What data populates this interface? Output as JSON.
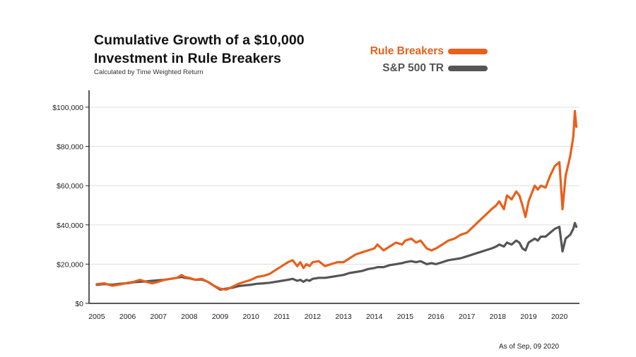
{
  "title_line1": "Cumulative Growth of a $10,000",
  "title_line2": "Investment in Rule Breakers",
  "subtitle": "Calculated by Time Weighted Return",
  "footnote": "As of Sep, 09 2020",
  "colors": {
    "rule_breakers": "#e8601c",
    "sp500": "#555555",
    "axis": "#222222",
    "grid": "#dddddd"
  },
  "chart_data": {
    "type": "line",
    "title": "Cumulative Growth of a $10,000 Investment in Rule Breakers",
    "subtitle": "Calculated by Time Weighted Return",
    "xlabel": "",
    "ylabel": "",
    "xlim": [
      2004.75,
      2020.65
    ],
    "ylim": [
      0,
      105000
    ],
    "grid": true,
    "legend": "top-right",
    "y_ticks": [
      0,
      20000,
      40000,
      60000,
      80000,
      100000
    ],
    "y_tick_labels": [
      "$0",
      "$20,000",
      "$40,000",
      "$60,000",
      "$80,000",
      "$100,000"
    ],
    "x_ticks": [
      2005,
      2006,
      2007,
      2008,
      2009,
      2010,
      2011,
      2012,
      2013,
      2014,
      2015,
      2016,
      2017,
      2018,
      2019,
      2020
    ],
    "x_tick_labels": [
      "2005",
      "2006",
      "2007",
      "2008",
      "2009",
      "2010",
      "2011",
      "2012",
      "2013",
      "2014",
      "2015",
      "2016",
      "2017",
      "2018",
      "2019",
      "2020"
    ],
    "series": [
      {
        "name": "Rule Breakers",
        "color": "#e8601c",
        "x": [
          2005.0,
          2005.25,
          2005.5,
          2005.75,
          2006.0,
          2006.2,
          2006.4,
          2006.6,
          2006.8,
          2007.0,
          2007.2,
          2007.4,
          2007.6,
          2007.75,
          2007.85,
          2008.0,
          2008.2,
          2008.4,
          2008.6,
          2008.8,
          2009.0,
          2009.2,
          2009.4,
          2009.6,
          2009.8,
          2010.0,
          2010.2,
          2010.4,
          2010.6,
          2010.8,
          2011.0,
          2011.2,
          2011.35,
          2011.5,
          2011.6,
          2011.7,
          2011.8,
          2011.9,
          2012.0,
          2012.2,
          2012.4,
          2012.6,
          2012.8,
          2013.0,
          2013.2,
          2013.4,
          2013.6,
          2013.8,
          2014.0,
          2014.1,
          2014.3,
          2014.5,
          2014.7,
          2014.9,
          2015.0,
          2015.2,
          2015.35,
          2015.5,
          2015.7,
          2015.85,
          2016.0,
          2016.2,
          2016.4,
          2016.6,
          2016.8,
          2017.0,
          2017.2,
          2017.4,
          2017.6,
          2017.8,
          2017.95,
          2018.05,
          2018.2,
          2018.3,
          2018.45,
          2018.6,
          2018.7,
          2018.8,
          2018.9,
          2019.0,
          2019.1,
          2019.2,
          2019.3,
          2019.4,
          2019.55,
          2019.7,
          2019.85,
          2020.0,
          2020.1,
          2020.2,
          2020.35,
          2020.45,
          2020.5,
          2020.55
        ],
        "values": [
          9800,
          10200,
          9000,
          9600,
          10500,
          11000,
          12000,
          11000,
          10200,
          11000,
          12000,
          12500,
          13000,
          14500,
          13500,
          13000,
          12000,
          12500,
          11000,
          9000,
          7500,
          7000,
          8500,
          10000,
          11000,
          12000,
          13500,
          14000,
          15000,
          17000,
          19000,
          21000,
          22000,
          19000,
          21000,
          18000,
          20000,
          19000,
          21000,
          21500,
          19000,
          20000,
          21000,
          21000,
          23000,
          25000,
          26000,
          27000,
          28000,
          30000,
          27000,
          29000,
          31000,
          30000,
          32000,
          33000,
          31000,
          32000,
          28000,
          27000,
          28000,
          30000,
          32000,
          33000,
          35000,
          36000,
          39000,
          42000,
          45000,
          48000,
          50000,
          52000,
          48000,
          55000,
          53000,
          57000,
          55000,
          50000,
          44000,
          52000,
          56000,
          60000,
          58000,
          60000,
          59000,
          65000,
          70000,
          72000,
          48000,
          65000,
          75000,
          85000,
          98000,
          90000
        ]
      },
      {
        "name": "S&P 500 TR",
        "color": "#555555",
        "x": [
          2005.0,
          2005.25,
          2005.5,
          2005.75,
          2006.0,
          2006.2,
          2006.4,
          2006.6,
          2006.8,
          2007.0,
          2007.2,
          2007.4,
          2007.6,
          2007.75,
          2007.85,
          2008.0,
          2008.2,
          2008.4,
          2008.6,
          2008.8,
          2009.0,
          2009.2,
          2009.4,
          2009.6,
          2009.8,
          2010.0,
          2010.2,
          2010.4,
          2010.6,
          2010.8,
          2011.0,
          2011.2,
          2011.35,
          2011.5,
          2011.6,
          2011.7,
          2011.8,
          2011.9,
          2012.0,
          2012.2,
          2012.4,
          2012.6,
          2012.8,
          2013.0,
          2013.2,
          2013.4,
          2013.6,
          2013.8,
          2014.0,
          2014.1,
          2014.3,
          2014.5,
          2014.7,
          2014.9,
          2015.0,
          2015.2,
          2015.35,
          2015.5,
          2015.7,
          2015.85,
          2016.0,
          2016.2,
          2016.4,
          2016.6,
          2016.8,
          2017.0,
          2017.2,
          2017.4,
          2017.6,
          2017.8,
          2017.95,
          2018.05,
          2018.2,
          2018.3,
          2018.45,
          2018.6,
          2018.7,
          2018.8,
          2018.9,
          2019.0,
          2019.1,
          2019.2,
          2019.3,
          2019.4,
          2019.55,
          2019.7,
          2019.85,
          2020.0,
          2020.1,
          2020.2,
          2020.35,
          2020.45,
          2020.5,
          2020.55
        ],
        "values": [
          9500,
          9800,
          9500,
          10000,
          10300,
          10800,
          11000,
          11200,
          11500,
          11800,
          12000,
          12500,
          13000,
          13500,
          13000,
          12800,
          12000,
          12200,
          11000,
          9000,
          7000,
          7500,
          8000,
          8800,
          9200,
          9500,
          10000,
          10200,
          10500,
          11000,
          11500,
          12000,
          12500,
          11500,
          12000,
          11000,
          12000,
          11500,
          12500,
          13000,
          13000,
          13500,
          14000,
          14500,
          15500,
          16000,
          16500,
          17500,
          18000,
          18500,
          18500,
          19500,
          20000,
          20500,
          21000,
          21500,
          21000,
          21500,
          20000,
          20500,
          20000,
          21000,
          22000,
          22500,
          23000,
          24000,
          25000,
          26000,
          27000,
          28000,
          29000,
          30000,
          29000,
          31000,
          30000,
          32000,
          31000,
          28000,
          27000,
          31000,
          32000,
          33000,
          32000,
          34000,
          34000,
          36000,
          38000,
          39000,
          26500,
          33000,
          35000,
          38000,
          41000,
          39000
        ]
      }
    ]
  }
}
